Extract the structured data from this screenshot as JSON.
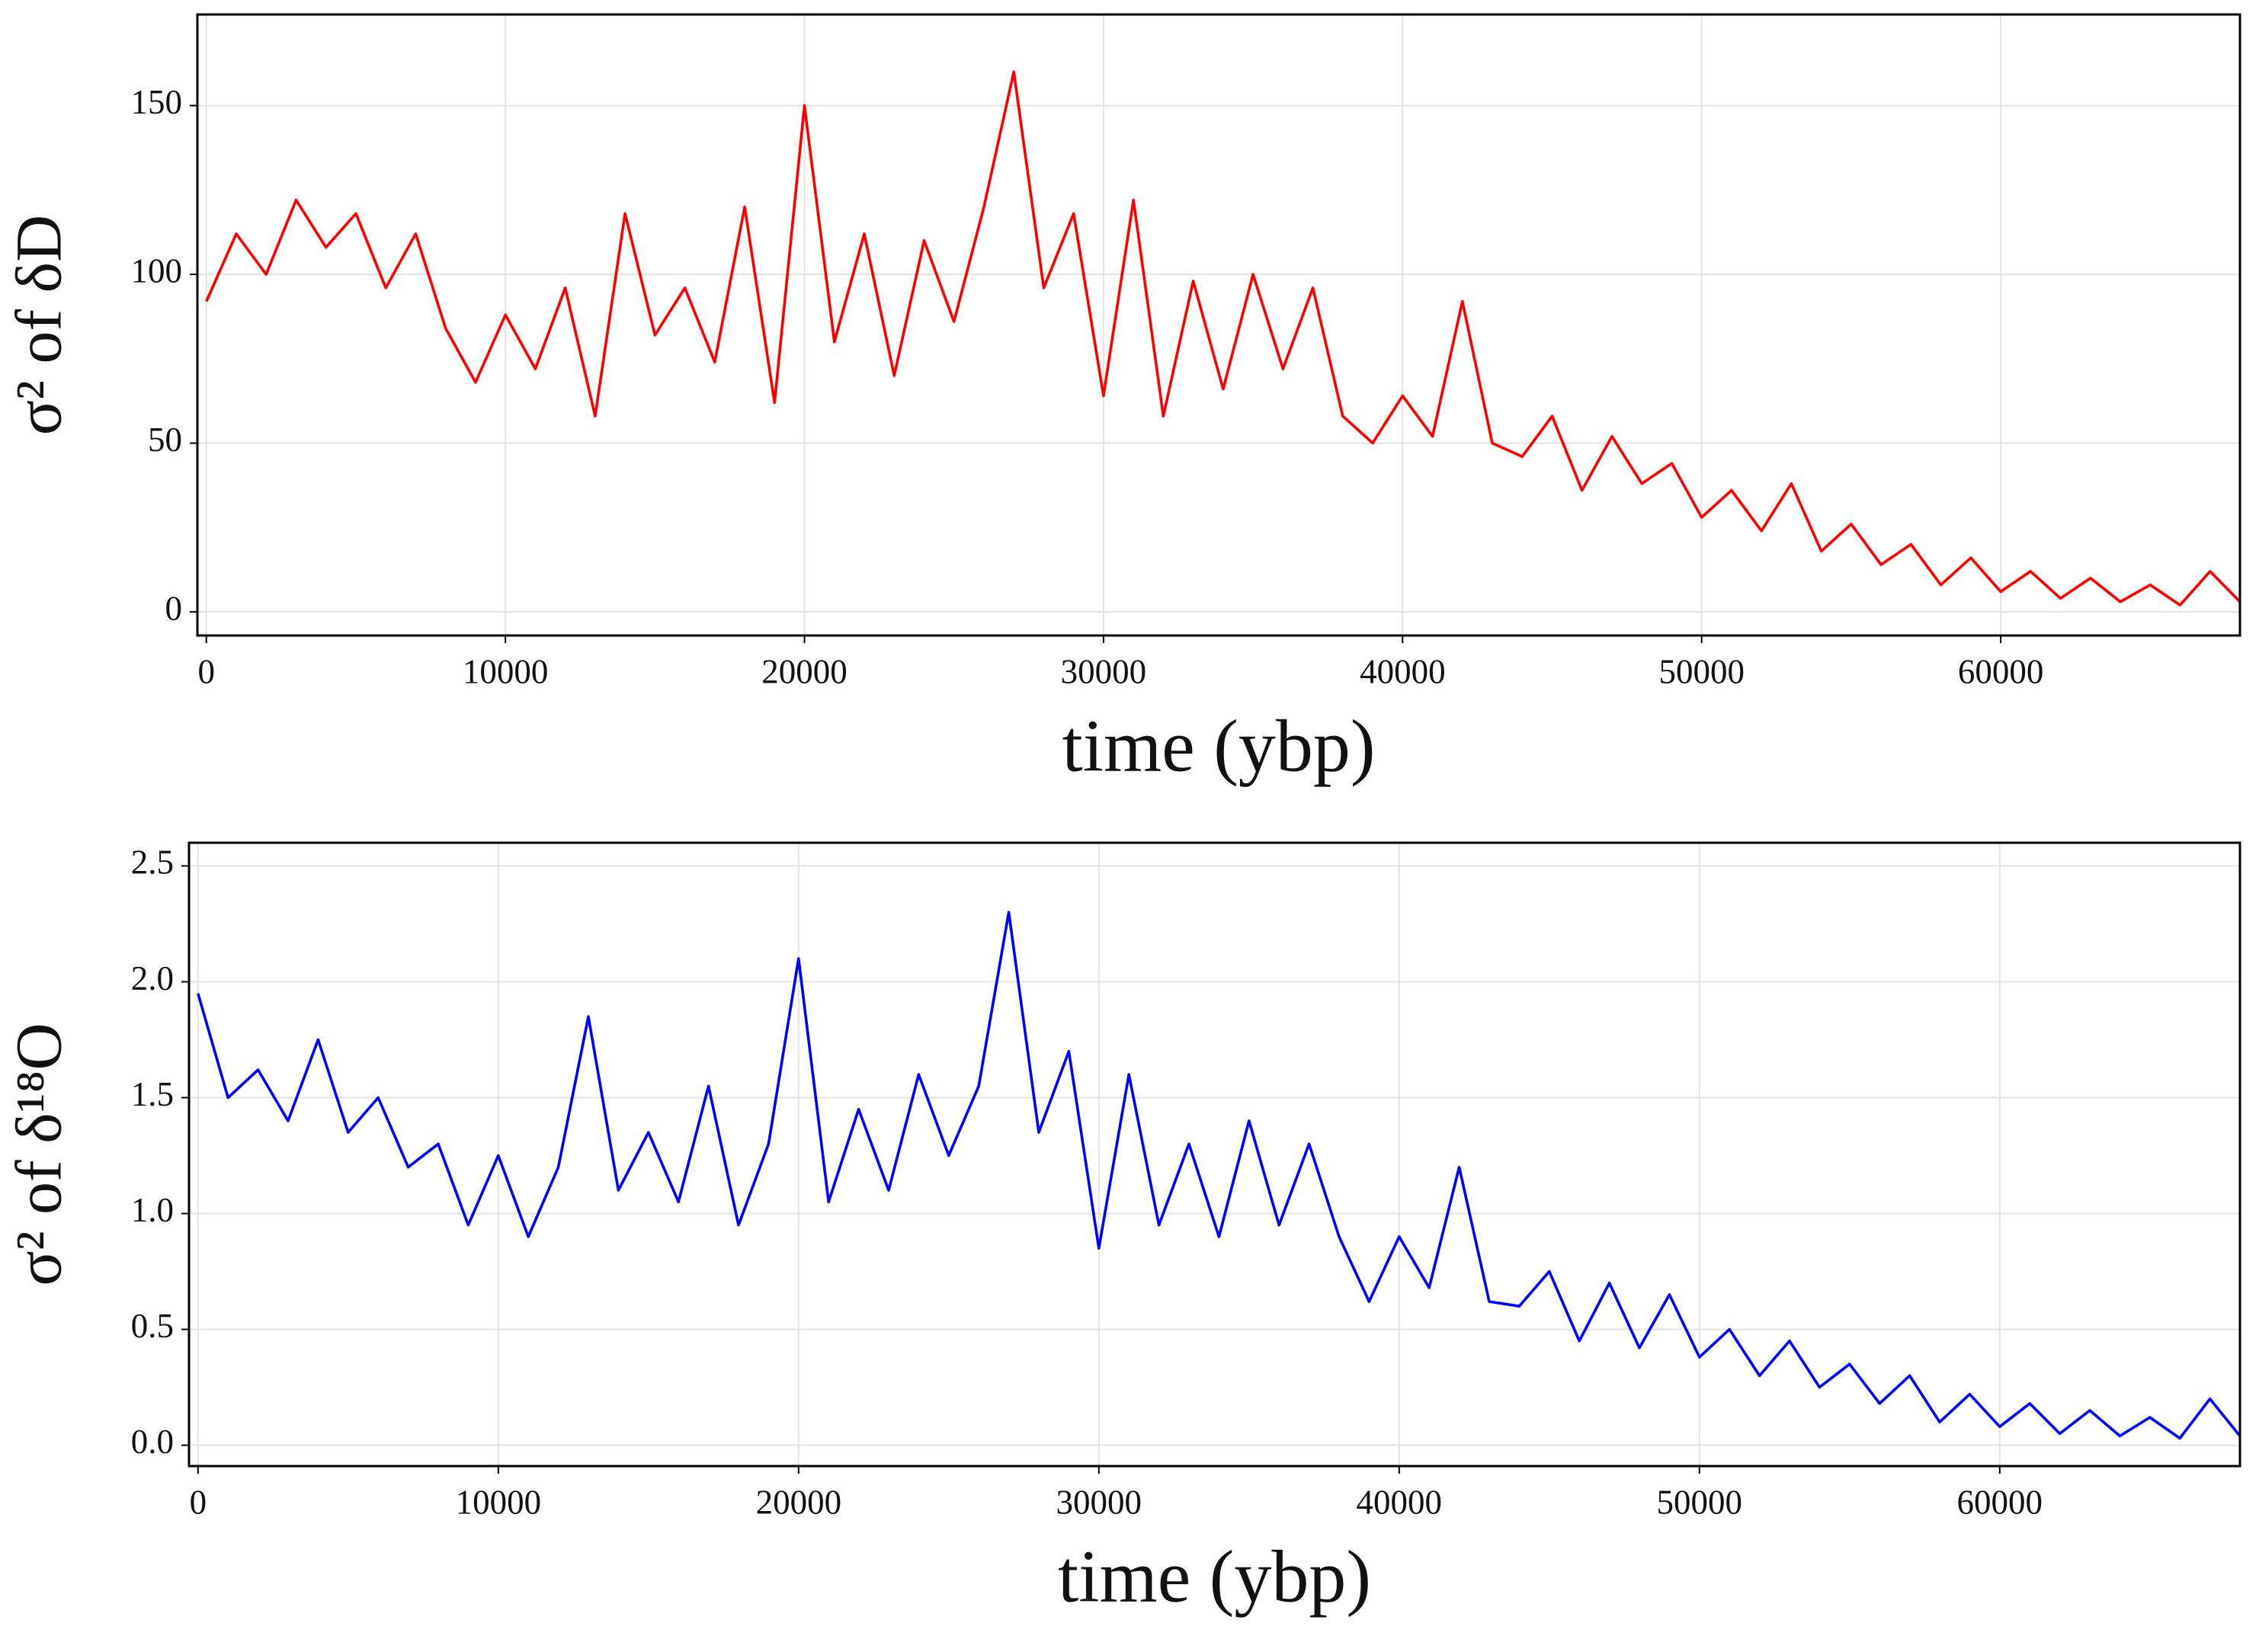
{
  "chart_data": [
    {
      "type": "line",
      "ylabel": "σ² of δD",
      "xlabel": "time (ybp)",
      "color": "#ff0000",
      "grid": true,
      "xlim": [
        -300,
        68000
      ],
      "xticks": [
        0,
        10000,
        20000,
        30000,
        40000,
        50000,
        60000
      ],
      "ylim": [
        -7,
        177
      ],
      "yticks": [
        0,
        50,
        100,
        150
      ],
      "x": [
        0,
        1000,
        2000,
        3000,
        4000,
        5000,
        6000,
        7000,
        8000,
        9000,
        10000,
        11000,
        12000,
        13000,
        14000,
        15000,
        16000,
        17000,
        18000,
        19000,
        20000,
        21000,
        22000,
        23000,
        24000,
        25000,
        26000,
        27000,
        28000,
        29000,
        30000,
        31000,
        32000,
        33000,
        34000,
        35000,
        36000,
        37000,
        38000,
        39000,
        40000,
        41000,
        42000,
        43000,
        44000,
        45000,
        46000,
        47000,
        48000,
        49000,
        50000,
        51000,
        52000,
        53000,
        54000,
        55000,
        56000,
        57000,
        58000,
        59000,
        60000,
        61000,
        62000,
        63000,
        64000,
        65000,
        66000,
        67000,
        68000
      ],
      "values": [
        92,
        112,
        100,
        122,
        108,
        118,
        96,
        112,
        84,
        68,
        88,
        72,
        96,
        58,
        118,
        82,
        96,
        74,
        120,
        62,
        150,
        80,
        112,
        70,
        110,
        86,
        120,
        160,
        96,
        118,
        64,
        122,
        58,
        98,
        66,
        100,
        72,
        96,
        58,
        50,
        64,
        52,
        92,
        50,
        46,
        58,
        36,
        52,
        38,
        44,
        28,
        36,
        24,
        38,
        18,
        26,
        14,
        20,
        8,
        16,
        6,
        12,
        4,
        10,
        3,
        8,
        2,
        12,
        3
      ]
    },
    {
      "type": "line",
      "ylabel": "σ² of δ¹⁸O",
      "xlabel": "time (ybp)",
      "color": "#0000ff",
      "grid": true,
      "xlim": [
        -300,
        68000
      ],
      "xticks": [
        0,
        10000,
        20000,
        30000,
        40000,
        50000,
        60000
      ],
      "ylim": [
        -0.09,
        2.6
      ],
      "yticks": [
        {
          "value": 0,
          "label": "0.0"
        },
        0.5,
        {
          "value": 1,
          "label": "1.0"
        },
        1.5,
        {
          "value": 2,
          "label": "2.0"
        },
        2.5
      ],
      "x": [
        0,
        1000,
        2000,
        3000,
        4000,
        5000,
        6000,
        7000,
        8000,
        9000,
        10000,
        11000,
        12000,
        13000,
        14000,
        15000,
        16000,
        17000,
        18000,
        19000,
        20000,
        21000,
        22000,
        23000,
        24000,
        25000,
        26000,
        27000,
        28000,
        29000,
        30000,
        31000,
        32000,
        33000,
        34000,
        35000,
        36000,
        37000,
        38000,
        39000,
        40000,
        41000,
        42000,
        43000,
        44000,
        45000,
        46000,
        47000,
        48000,
        49000,
        50000,
        51000,
        52000,
        53000,
        54000,
        55000,
        56000,
        57000,
        58000,
        59000,
        60000,
        61000,
        62000,
        63000,
        64000,
        65000,
        66000,
        67000,
        68000
      ],
      "values": [
        1.95,
        1.5,
        1.62,
        1.4,
        1.75,
        1.35,
        1.5,
        1.2,
        1.3,
        0.95,
        1.25,
        0.9,
        1.2,
        1.85,
        1.1,
        1.35,
        1.05,
        1.55,
        0.95,
        1.3,
        2.1,
        1.05,
        1.45,
        1.1,
        1.6,
        1.25,
        1.55,
        2.3,
        1.35,
        1.7,
        0.85,
        1.6,
        0.95,
        1.3,
        0.9,
        1.4,
        0.95,
        1.3,
        0.9,
        0.62,
        0.9,
        0.68,
        1.2,
        0.62,
        0.6,
        0.75,
        0.45,
        0.7,
        0.42,
        0.65,
        0.38,
        0.5,
        0.3,
        0.45,
        0.25,
        0.35,
        0.18,
        0.3,
        0.1,
        0.22,
        0.08,
        0.18,
        0.05,
        0.15,
        0.04,
        0.12,
        0.03,
        0.2,
        0.04
      ]
    }
  ]
}
